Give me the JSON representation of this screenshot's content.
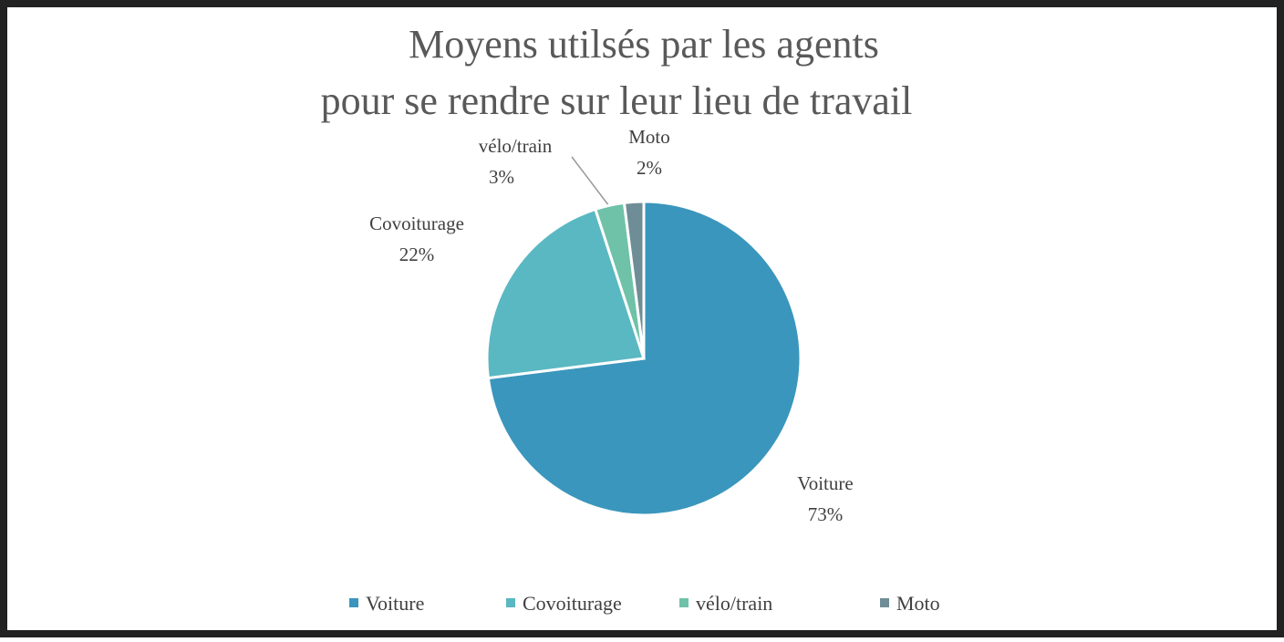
{
  "chart_data": {
    "type": "pie",
    "title": [
      "Moyens utilsés par les agents",
      "pour se rendre sur leur lieu de travail"
    ],
    "categories": [
      "Voiture",
      "Covoiturage",
      "vélo/train",
      "Moto"
    ],
    "values": [
      73,
      22,
      3,
      2
    ],
    "value_labels": [
      "73%",
      "22%",
      "3%",
      "2%"
    ],
    "colors": [
      "#3a96bc",
      "#5ab8c2",
      "#6fc2a8",
      "#6f8d96"
    ],
    "legend": "bottom"
  }
}
